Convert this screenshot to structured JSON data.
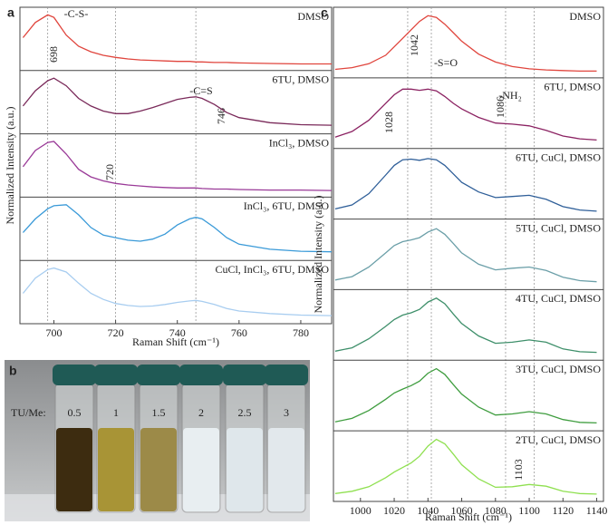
{
  "chart_data": [
    {
      "type": "line",
      "panel": "a",
      "xlabel": "Raman Shift (cm⁻¹)",
      "ylabel": "Normalized Intensity (a.u.)",
      "xlim": [
        689,
        790
      ],
      "xticks": [
        700,
        720,
        740,
        760,
        780
      ],
      "x": [
        690,
        694,
        698,
        700,
        704,
        708,
        712,
        716,
        720,
        724,
        728,
        732,
        736,
        740,
        744,
        746,
        748,
        752,
        756,
        760,
        770,
        780,
        790
      ],
      "series": [
        {
          "name": "DMSO",
          "color": "#e0453d",
          "values": [
            0.55,
            0.85,
            1.0,
            0.95,
            0.6,
            0.38,
            0.27,
            0.2,
            0.16,
            0.13,
            0.11,
            0.1,
            0.09,
            0.08,
            0.08,
            0.07,
            0.07,
            0.06,
            0.06,
            0.05,
            0.04,
            0.03,
            0.03
          ]
        },
        {
          "name": "6TU, DMSO",
          "color": "#7a2a5a",
          "values": [
            0.45,
            0.75,
            0.95,
            1.0,
            0.85,
            0.6,
            0.45,
            0.35,
            0.3,
            0.3,
            0.35,
            0.42,
            0.5,
            0.58,
            0.62,
            0.63,
            0.6,
            0.48,
            0.32,
            0.22,
            0.12,
            0.08,
            0.07
          ]
        },
        {
          "name": "InCl₃, DMSO",
          "color": "#9a3a98",
          "values": [
            0.5,
            0.82,
            0.98,
            1.0,
            0.75,
            0.45,
            0.3,
            0.22,
            0.17,
            0.14,
            0.12,
            0.1,
            0.09,
            0.08,
            0.08,
            0.08,
            0.07,
            0.06,
            0.06,
            0.05,
            0.04,
            0.04,
            0.03
          ]
        },
        {
          "name": "InCl₃, 6TU, DMSO",
          "color": "#3a9ad8",
          "values": [
            0.45,
            0.72,
            0.92,
            0.98,
            1.0,
            0.8,
            0.55,
            0.4,
            0.35,
            0.3,
            0.28,
            0.32,
            0.42,
            0.6,
            0.72,
            0.75,
            0.72,
            0.55,
            0.35,
            0.22,
            0.12,
            0.08,
            0.07
          ]
        },
        {
          "name": "CuCl, InCl₃, 6TU, DMSO",
          "color": "#a8cdf0",
          "values": [
            0.5,
            0.8,
            0.97,
            1.0,
            0.92,
            0.7,
            0.5,
            0.38,
            0.3,
            0.26,
            0.24,
            0.25,
            0.28,
            0.32,
            0.35,
            0.36,
            0.34,
            0.28,
            0.2,
            0.15,
            0.1,
            0.07,
            0.06
          ]
        }
      ],
      "markers": [
        {
          "label": "698",
          "x": 698,
          "color": "#e0453d"
        },
        {
          "label": "746",
          "x": 746,
          "color": "#7a2a5a"
        },
        {
          "label": "720",
          "x": 720,
          "color": "#9a3a98"
        }
      ],
      "annotations": [
        {
          "text": "-C-S-",
          "color": "#e0453d"
        },
        {
          "text": "-C=S",
          "color": "#7a2a5a"
        }
      ]
    },
    {
      "type": "photo",
      "panel": "b",
      "label": "TU/Me:",
      "categories": [
        "0.5",
        "1",
        "1.5",
        "2",
        "2.5",
        "3"
      ]
    },
    {
      "type": "line",
      "panel": "c",
      "xlabel": "Raman Shift (cm⁻¹)",
      "ylabel": "Normalized Intensity (a.u.)",
      "xlim": [
        984,
        1144
      ],
      "xticks": [
        1000,
        1020,
        1040,
        1060,
        1080,
        1100,
        1120,
        1140
      ],
      "x": [
        985,
        995,
        1005,
        1015,
        1020,
        1025,
        1030,
        1035,
        1040,
        1045,
        1050,
        1055,
        1060,
        1070,
        1080,
        1090,
        1100,
        1110,
        1120,
        1130,
        1140
      ],
      "series": [
        {
          "name": "DMSO",
          "color": "#e0453d",
          "values": [
            0.05,
            0.08,
            0.15,
            0.3,
            0.45,
            0.6,
            0.75,
            0.9,
            1.0,
            0.97,
            0.85,
            0.7,
            0.55,
            0.32,
            0.18,
            0.1,
            0.06,
            0.04,
            0.03,
            0.02,
            0.02
          ]
        },
        {
          "name": "6TU, DMSO",
          "color": "#8b2262",
          "values": [
            0.1,
            0.2,
            0.4,
            0.7,
            0.85,
            0.95,
            0.95,
            0.93,
            0.95,
            0.92,
            0.82,
            0.7,
            0.6,
            0.45,
            0.35,
            0.33,
            0.3,
            0.22,
            0.12,
            0.07,
            0.05
          ]
        },
        {
          "name": "6TU, CuCl, DMSO",
          "color": "#2f5f99",
          "values": [
            0.08,
            0.15,
            0.35,
            0.68,
            0.85,
            0.95,
            0.96,
            0.94,
            0.97,
            0.95,
            0.85,
            0.7,
            0.55,
            0.38,
            0.28,
            0.3,
            0.32,
            0.25,
            0.12,
            0.06,
            0.04
          ]
        },
        {
          "name": "5TU, CuCl, DMSO",
          "color": "#6b9fa8",
          "values": [
            0.07,
            0.13,
            0.3,
            0.55,
            0.68,
            0.75,
            0.78,
            0.82,
            0.92,
            0.98,
            0.88,
            0.72,
            0.55,
            0.35,
            0.25,
            0.28,
            0.3,
            0.24,
            0.12,
            0.06,
            0.04
          ]
        },
        {
          "name": "4TU, CuCl, DMSO",
          "color": "#3e8f6a",
          "values": [
            0.06,
            0.12,
            0.28,
            0.5,
            0.62,
            0.7,
            0.74,
            0.8,
            0.93,
            1.0,
            0.9,
            0.72,
            0.55,
            0.33,
            0.2,
            0.22,
            0.26,
            0.22,
            0.1,
            0.05,
            0.04
          ]
        },
        {
          "name": "3TU, CuCl, DMSO",
          "color": "#3f9d3f",
          "values": [
            0.06,
            0.12,
            0.26,
            0.46,
            0.57,
            0.64,
            0.7,
            0.78,
            0.92,
            1.0,
            0.9,
            0.72,
            0.55,
            0.32,
            0.18,
            0.2,
            0.24,
            0.2,
            0.1,
            0.05,
            0.04
          ]
        },
        {
          "name": "2TU, CuCl, DMSO",
          "color": "#8fe050",
          "values": [
            0.04,
            0.08,
            0.16,
            0.32,
            0.42,
            0.5,
            0.58,
            0.7,
            0.88,
            1.0,
            0.92,
            0.74,
            0.55,
            0.3,
            0.15,
            0.16,
            0.2,
            0.17,
            0.08,
            0.04,
            0.03
          ]
        }
      ],
      "markers": [
        {
          "label": "1042",
          "x": 1042,
          "color": "#e0453d"
        },
        {
          "label": "1028",
          "x": 1028,
          "color": "#8b2262"
        },
        {
          "label": "1086",
          "x": 1086,
          "color": "#8b2262"
        },
        {
          "label": "1103",
          "x": 1103,
          "color": "#5ecf2a"
        }
      ],
      "annotations": [
        {
          "text": "-S=O",
          "color": "#e0453d"
        },
        {
          "text": "-NH₂",
          "color": "#8b2262"
        }
      ]
    }
  ]
}
